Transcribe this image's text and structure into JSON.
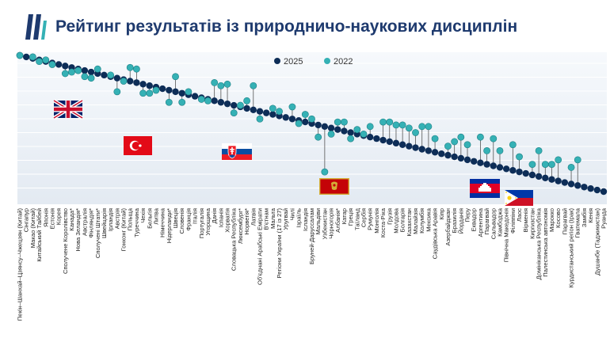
{
  "header": {
    "title": "Рейтинг результатів із природничо-наукових дисциплін"
  },
  "legend": [
    {
      "label": "2025",
      "color": "#0d2d57"
    },
    {
      "label": "2022",
      "color": "#35b1b5"
    }
  ],
  "flags": [
    {
      "name": "united-kingdom-flag"
    },
    {
      "name": "turkey-flag"
    },
    {
      "name": "slovakia-flag"
    },
    {
      "name": "montenegro-flag"
    },
    {
      "name": "cambodia-flag"
    },
    {
      "name": "philippines-flag"
    }
  ],
  "chart_data": {
    "type": "scatter",
    "title": "Рейтинг результатів із природничо-наукових дисциплін",
    "grid": true,
    "y_axis": "rank (1 = top)",
    "x": [
      "Пекін–Шанхай–Цзянсу–Чжецзян (Китай)",
      "Сінгапур",
      "Макао (Китай)",
      "Китайський Тайбей",
      "Японія",
      "Естонія",
      "Корея",
      "Сполучене Королівство",
      "Канада*",
      "Нова Зеландія*",
      "Австралія",
      "Фінляндія*",
      "Сполучені Штати*",
      "Швейцарія",
      "Ірландія",
      "Австрія",
      "Гонконг (Китай)",
      "Польща",
      "Туреччина",
      "Чехія",
      "Бельгія",
      "Литва",
      "Німеччина",
      "Нідерланди*",
      "Швеція",
      "Словенія",
      "Франція",
      "Італія",
      "Португалія",
      "Угорщина",
      "Данія",
      "Іспанія",
      "Хорватія",
      "Словацька Республіка",
      "Люксембург*",
      "Норвегія*",
      "Латвія",
      "Об'єднані Арабські Емірати",
      "В'єтнам",
      "Мальта",
      "Регіони України (17 із 27)",
      "Уругвай",
      "Чилі",
      "Ізраїль",
      "Ісландія",
      "Бруней-Даруссалам",
      "Мальдіви",
      "Узбекистан",
      "Чорногорія",
      "Албанія*",
      "Катар",
      "Греція",
      "Таїланд",
      "Сербія",
      "Румунія",
      "Монголія",
      "Коста-Ріка",
      "Грузія",
      "Молдова",
      "Болгарія",
      "Казахстан",
      "Малайзія",
      "Колумбія",
      "Мексика",
      "Саудівська Аравія",
      "Кіпр",
      "Азербайджан",
      "Бразилія",
      "Йорданія",
      "Перу",
      "Еквадор",
      "Аргентина",
      "Парагвай",
      "Сальвадор",
      "Камбоджа",
      "Північна Македонія",
      "Філіппіни",
      "Лаос",
      "Вірменія",
      "Киргизстан",
      "Домініканська Республіка",
      "Палестинська автономія",
      "Марокко",
      "Косово",
      "Парагвай",
      "Курдистанський регіон (Ірак)",
      "Гватемала",
      "Замбія",
      "Кенія",
      "Душанбе (Таджикистан)",
      "Руанда"
    ],
    "series": [
      {
        "name": "2025",
        "color": "#0d2d57",
        "values": [
          1,
          2,
          3,
          4,
          5,
          6,
          7,
          8,
          9,
          10,
          11,
          12,
          13,
          14,
          15,
          16,
          17,
          18,
          19,
          20,
          21,
          22,
          23,
          24,
          25,
          26,
          27,
          28,
          29,
          30,
          31,
          32,
          33,
          34,
          35,
          36,
          37,
          38,
          39,
          40,
          41,
          42,
          43,
          44,
          45,
          46,
          47,
          48,
          49,
          50,
          51,
          52,
          53,
          54,
          55,
          56,
          57,
          58,
          59,
          60,
          61,
          62,
          63,
          64,
          65,
          66,
          67,
          68,
          69,
          70,
          71,
          72,
          73,
          74,
          75,
          76,
          77,
          78,
          79,
          80,
          81,
          82,
          83,
          84,
          85,
          86,
          87,
          88,
          89,
          90,
          91
        ]
      },
      {
        "name": "2022",
        "color": "#35b1b5",
        "values": [
          1,
          null,
          2,
          5,
          4,
          7,
          null,
          13,
          12,
          11,
          15,
          16,
          10,
          null,
          14,
          25,
          18,
          9,
          10,
          26,
          26,
          24,
          null,
          32,
          15,
          32,
          25,
          null,
          30,
          31,
          19,
          21,
          20,
          39,
          34,
          31,
          21,
          43,
          null,
          36,
          38,
          null,
          35,
          46,
          40,
          43,
          55,
          78,
          53,
          45,
          45,
          56,
          50,
          53,
          48,
          null,
          45,
          45,
          47,
          47,
          49,
          52,
          48,
          48,
          56,
          null,
          61,
          58,
          55,
          60,
          null,
          55,
          64,
          56,
          64,
          null,
          60,
          68,
          null,
          73,
          64,
          73,
          73,
          70,
          null,
          75,
          70,
          null,
          null,
          null,
          null
        ]
      }
    ]
  }
}
